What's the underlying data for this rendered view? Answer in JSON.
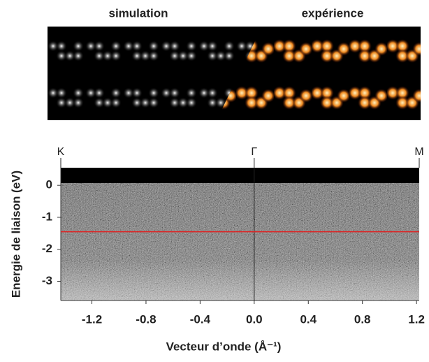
{
  "chart_data": {
    "type": "image",
    "panel_labels": [
      "simulation",
      "expérience"
    ],
    "xlabel": "Vecteur d’onde (Å⁻¹)",
    "ylabel": "Energie de liaison (eV)",
    "xlim": [
      -1.43,
      1.22
    ],
    "ylim": [
      -3.6,
      0.55
    ],
    "xticks": [
      -1.2,
      -0.8,
      -0.4,
      {
        "value": 0,
        "label": "0.0"
      },
      0.4,
      0.8,
      1.2
    ],
    "yticks": [
      0,
      -1,
      -2,
      -3
    ],
    "symmetry_points": [
      {
        "label": "K",
        "value": -1.43
      },
      {
        "label": "Γ",
        "value": 0
      },
      {
        "label": "M",
        "value": 1.22
      }
    ],
    "red_line": {
      "value": -1.45,
      "color": "#e02020"
    }
  }
}
